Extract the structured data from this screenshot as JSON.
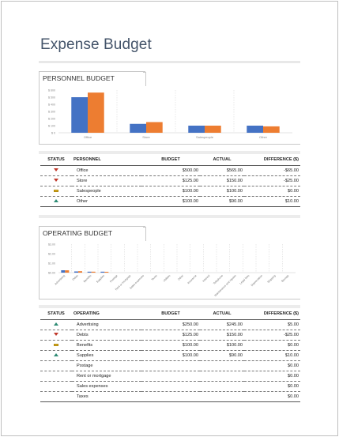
{
  "document": {
    "title": "Expense Budget"
  },
  "personnel": {
    "section_title": "PERSONNEL BUDGET",
    "table": {
      "headers": [
        "STATUS",
        "PERSONNEL",
        "BUDGET",
        "ACTUAL",
        "DIFFERENCE ($)"
      ],
      "rows": [
        {
          "status": "down-icon",
          "name": "Office",
          "budget": "$500.00",
          "actual": "$565.00",
          "difference": "-$65.00"
        },
        {
          "status": "down-icon",
          "name": "Store",
          "budget": "$125.00",
          "actual": "$150.00",
          "difference": "-$25.00"
        },
        {
          "status": "flat-icon",
          "name": "Salespeople",
          "budget": "$100.00",
          "actual": "$100.00",
          "difference": "$0.00"
        },
        {
          "status": "up-icon",
          "name": "Other",
          "budget": "$100.00",
          "actual": "$90.00",
          "difference": "$10.00"
        }
      ]
    }
  },
  "operating": {
    "section_title": "OPERATING BUDGET",
    "table": {
      "headers": [
        "STATUS",
        "OPERATING",
        "BUDGET",
        "ACTUAL",
        "DIFFERENCE ($)"
      ],
      "rows": [
        {
          "status": "up-icon",
          "name": "Advertising",
          "budget": "$250.00",
          "actual": "$245.00",
          "difference": "$5.00"
        },
        {
          "status": "down-icon",
          "name": "Debts",
          "budget": "$125.00",
          "actual": "$150.00",
          "difference": "-$25.00"
        },
        {
          "status": "flat-icon",
          "name": "Benefits",
          "budget": "$100.00",
          "actual": "$100.00",
          "difference": "$0.00"
        },
        {
          "status": "up-icon",
          "name": "Supplies",
          "budget": "$100.00",
          "actual": "$90.00",
          "difference": "$10.00"
        },
        {
          "status": "",
          "name": "Postage",
          "budget": "",
          "actual": "",
          "difference": "$0.00"
        },
        {
          "status": "",
          "name": "Rent or mortgage",
          "budget": "",
          "actual": "",
          "difference": "$0.00"
        },
        {
          "status": "",
          "name": "Sales expenses",
          "budget": "",
          "actual": "",
          "difference": "$0.00"
        },
        {
          "status": "",
          "name": "Taxes",
          "budget": "",
          "actual": "",
          "difference": "$0.00"
        }
      ]
    }
  },
  "chart_data": [
    {
      "type": "bar",
      "categories": [
        "Office",
        "Store",
        "Salespeople",
        "Other"
      ],
      "series": [
        {
          "values": [
            500,
            125,
            100,
            100
          ]
        },
        {
          "values": [
            565,
            150,
            100,
            90
          ]
        }
      ],
      "colors": [
        "#4472c4",
        "#ed7d31"
      ],
      "yticks": [
        "$ 0",
        "$ 100",
        "$ 200",
        "$ 300",
        "$ 400",
        "$ 500",
        "$ 600"
      ],
      "ylim": [
        0,
        600
      ],
      "grid": true,
      "legend": "none"
    },
    {
      "type": "bar",
      "categories": [
        "Advertising",
        "Debts",
        "Benefits",
        "Supplies",
        "Postage",
        "Rent or mortgage",
        "Sales expenses",
        "Taxes",
        "Utilities",
        "Other",
        "Insurance",
        "Interest",
        "Telephone",
        "Maintenance and repairs",
        "Legal fees",
        "Depreciation",
        "Shipping",
        "Storage"
      ],
      "series": [
        {
          "values": [
            250,
            125,
            100,
            100,
            0,
            0,
            0,
            0,
            0,
            0,
            0,
            0,
            0,
            0,
            0,
            0,
            0,
            0
          ]
        },
        {
          "values": [
            245,
            150,
            100,
            90,
            0,
            0,
            0,
            0,
            0,
            0,
            0,
            0,
            0,
            0,
            0,
            0,
            0,
            0
          ]
        }
      ],
      "colors": [
        "#4472c4",
        "#ed7d31"
      ],
      "yticks": [
        "$0.00",
        "$1.00",
        "$2.00",
        "$3.00"
      ],
      "ylim": [
        0,
        3000
      ],
      "grid": true,
      "legend": "none"
    }
  ]
}
